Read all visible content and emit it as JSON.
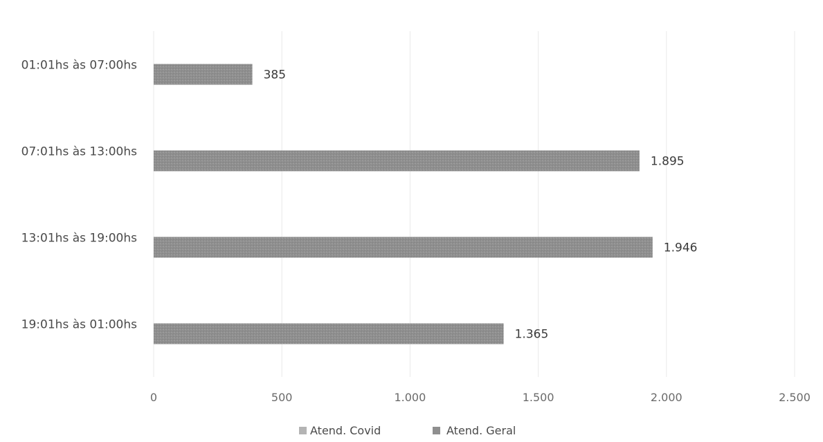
{
  "chart_data": {
    "type": "bar",
    "orientation": "horizontal",
    "categories": [
      "01:01hs às 07:00hs",
      "07:01hs às 13:00hs",
      "13:01hs às 19:00hs",
      "19:01hs às 01:00hs"
    ],
    "series": [
      {
        "name": "Atend. Covid",
        "values": [
          null,
          null,
          null,
          null
        ],
        "color": "#b4b4b4"
      },
      {
        "name": "Atend. Geral",
        "values": [
          385,
          1895,
          1946,
          1365
        ],
        "color": "#8f8f8f"
      }
    ],
    "value_labels": [
      "385",
      "1.895",
      "1.946",
      "1.365"
    ],
    "xlim": [
      0,
      2500
    ],
    "xticks": [
      0,
      500,
      1000,
      1500,
      2000,
      2500
    ],
    "xtick_labels": [
      "0",
      "500",
      "1.000",
      "1.500",
      "2.000",
      "2.500"
    ],
    "grid": "vertical",
    "legend": "bottom-center",
    "title": "",
    "xlabel": "",
    "ylabel": ""
  }
}
